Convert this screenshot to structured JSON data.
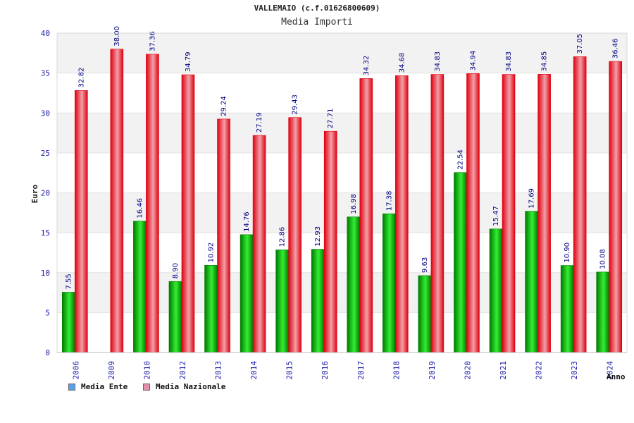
{
  "chart_data": {
    "type": "bar",
    "title": "VALLEMAIO (c.f.01626800609)",
    "subtitle": "Media Importi",
    "xlabel": "Anno",
    "ylabel": "Euro",
    "ylim": [
      0,
      40
    ],
    "yticks": [
      "0",
      "5",
      "10",
      "15",
      "20",
      "25",
      "30",
      "35",
      "40"
    ],
    "categories": [
      "2006",
      "2009",
      "2010",
      "2012",
      "2013",
      "2014",
      "2015",
      "2016",
      "2017",
      "2018",
      "2019",
      "2020",
      "2021",
      "2022",
      "2023",
      "2024"
    ],
    "series": [
      {
        "name": "Media Ente",
        "values": [
          7.55,
          null,
          16.46,
          8.9,
          10.92,
          14.76,
          12.86,
          12.93,
          16.98,
          17.38,
          9.63,
          22.54,
          15.47,
          17.69,
          10.9,
          10.08
        ],
        "labels": [
          "7.55",
          "",
          "16.46",
          "8.90",
          "10.92",
          "14.76",
          "12.86",
          "12.93",
          "16.98",
          "17.38",
          "9.63",
          "22.54",
          "15.47",
          "17.69",
          "10.90",
          "10.08"
        ]
      },
      {
        "name": "Media Nazionale",
        "values": [
          32.82,
          38.0,
          37.36,
          34.79,
          29.24,
          27.19,
          29.43,
          27.71,
          34.32,
          34.68,
          34.83,
          34.94,
          34.83,
          34.85,
          37.05,
          36.46
        ],
        "labels": [
          "32.82",
          "38.00",
          "37.36",
          "34.79",
          "29.24",
          "27.19",
          "29.43",
          "27.71",
          "34.32",
          "34.68",
          "34.83",
          "34.94",
          "34.83",
          "34.85",
          "37.05",
          "36.46"
        ]
      }
    ],
    "legend_position": "bottom-left"
  },
  "colors": {
    "ente_dark": "#007a00",
    "ente_light": "#33ee33",
    "naz_dark": "#e00010",
    "naz_light": "#f0a0a8",
    "legend_ente": "#5aa0e6",
    "legend_naz": "#e38fb0",
    "band": "#f2f2f2",
    "axis_text": "#1a1aaa",
    "label_text": "#000080"
  }
}
